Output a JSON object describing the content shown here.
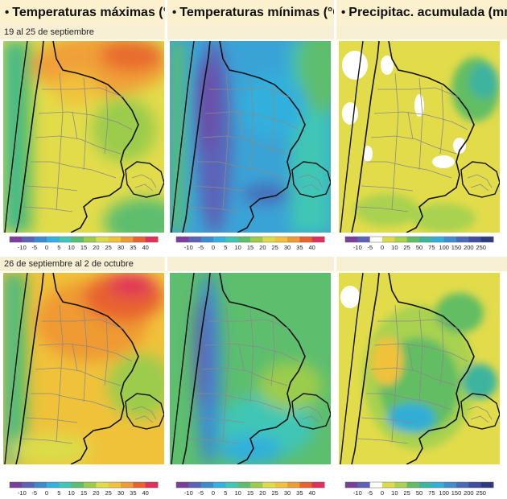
{
  "headers": [
    {
      "bullet": "•",
      "title": "Temperaturas máximas (°C)"
    },
    {
      "bullet": "•",
      "title": "Temperaturas mínimas (°C)"
    },
    {
      "bullet": "•",
      "title": "Precipitac. acumulada (mm)"
    }
  ],
  "periods": [
    {
      "label": "19 al 25 de septiembre"
    },
    {
      "label": "26 de septiembre al 2 de octubre"
    }
  ],
  "scales": {
    "temperature": {
      "ticks": [
        "-10",
        "-5",
        "0",
        "5",
        "10",
        "15",
        "20",
        "25",
        "30",
        "35",
        "40"
      ],
      "colors": [
        "#7a3f9c",
        "#5b63b7",
        "#3c8bd1",
        "#33b0dd",
        "#3fc6b5",
        "#5dbe6e",
        "#9bcc4c",
        "#dcdc4a",
        "#f0c23a",
        "#ef9a33",
        "#e7622e",
        "#e0305a"
      ]
    },
    "precipitation": {
      "ticks": [
        "-10",
        "-5",
        "0",
        "10",
        "25",
        "50",
        "75",
        "100",
        "150",
        "200",
        "250"
      ],
      "colors": [
        "#7a3f9c",
        "#5b63b7",
        "#ffffff",
        "#dcdc4a",
        "#a9d24f",
        "#62bd63",
        "#3cb49e",
        "#33aed6",
        "#3f8ccf",
        "#4a6ab8",
        "#3f4ea0",
        "#2e3a80"
      ]
    }
  }
}
